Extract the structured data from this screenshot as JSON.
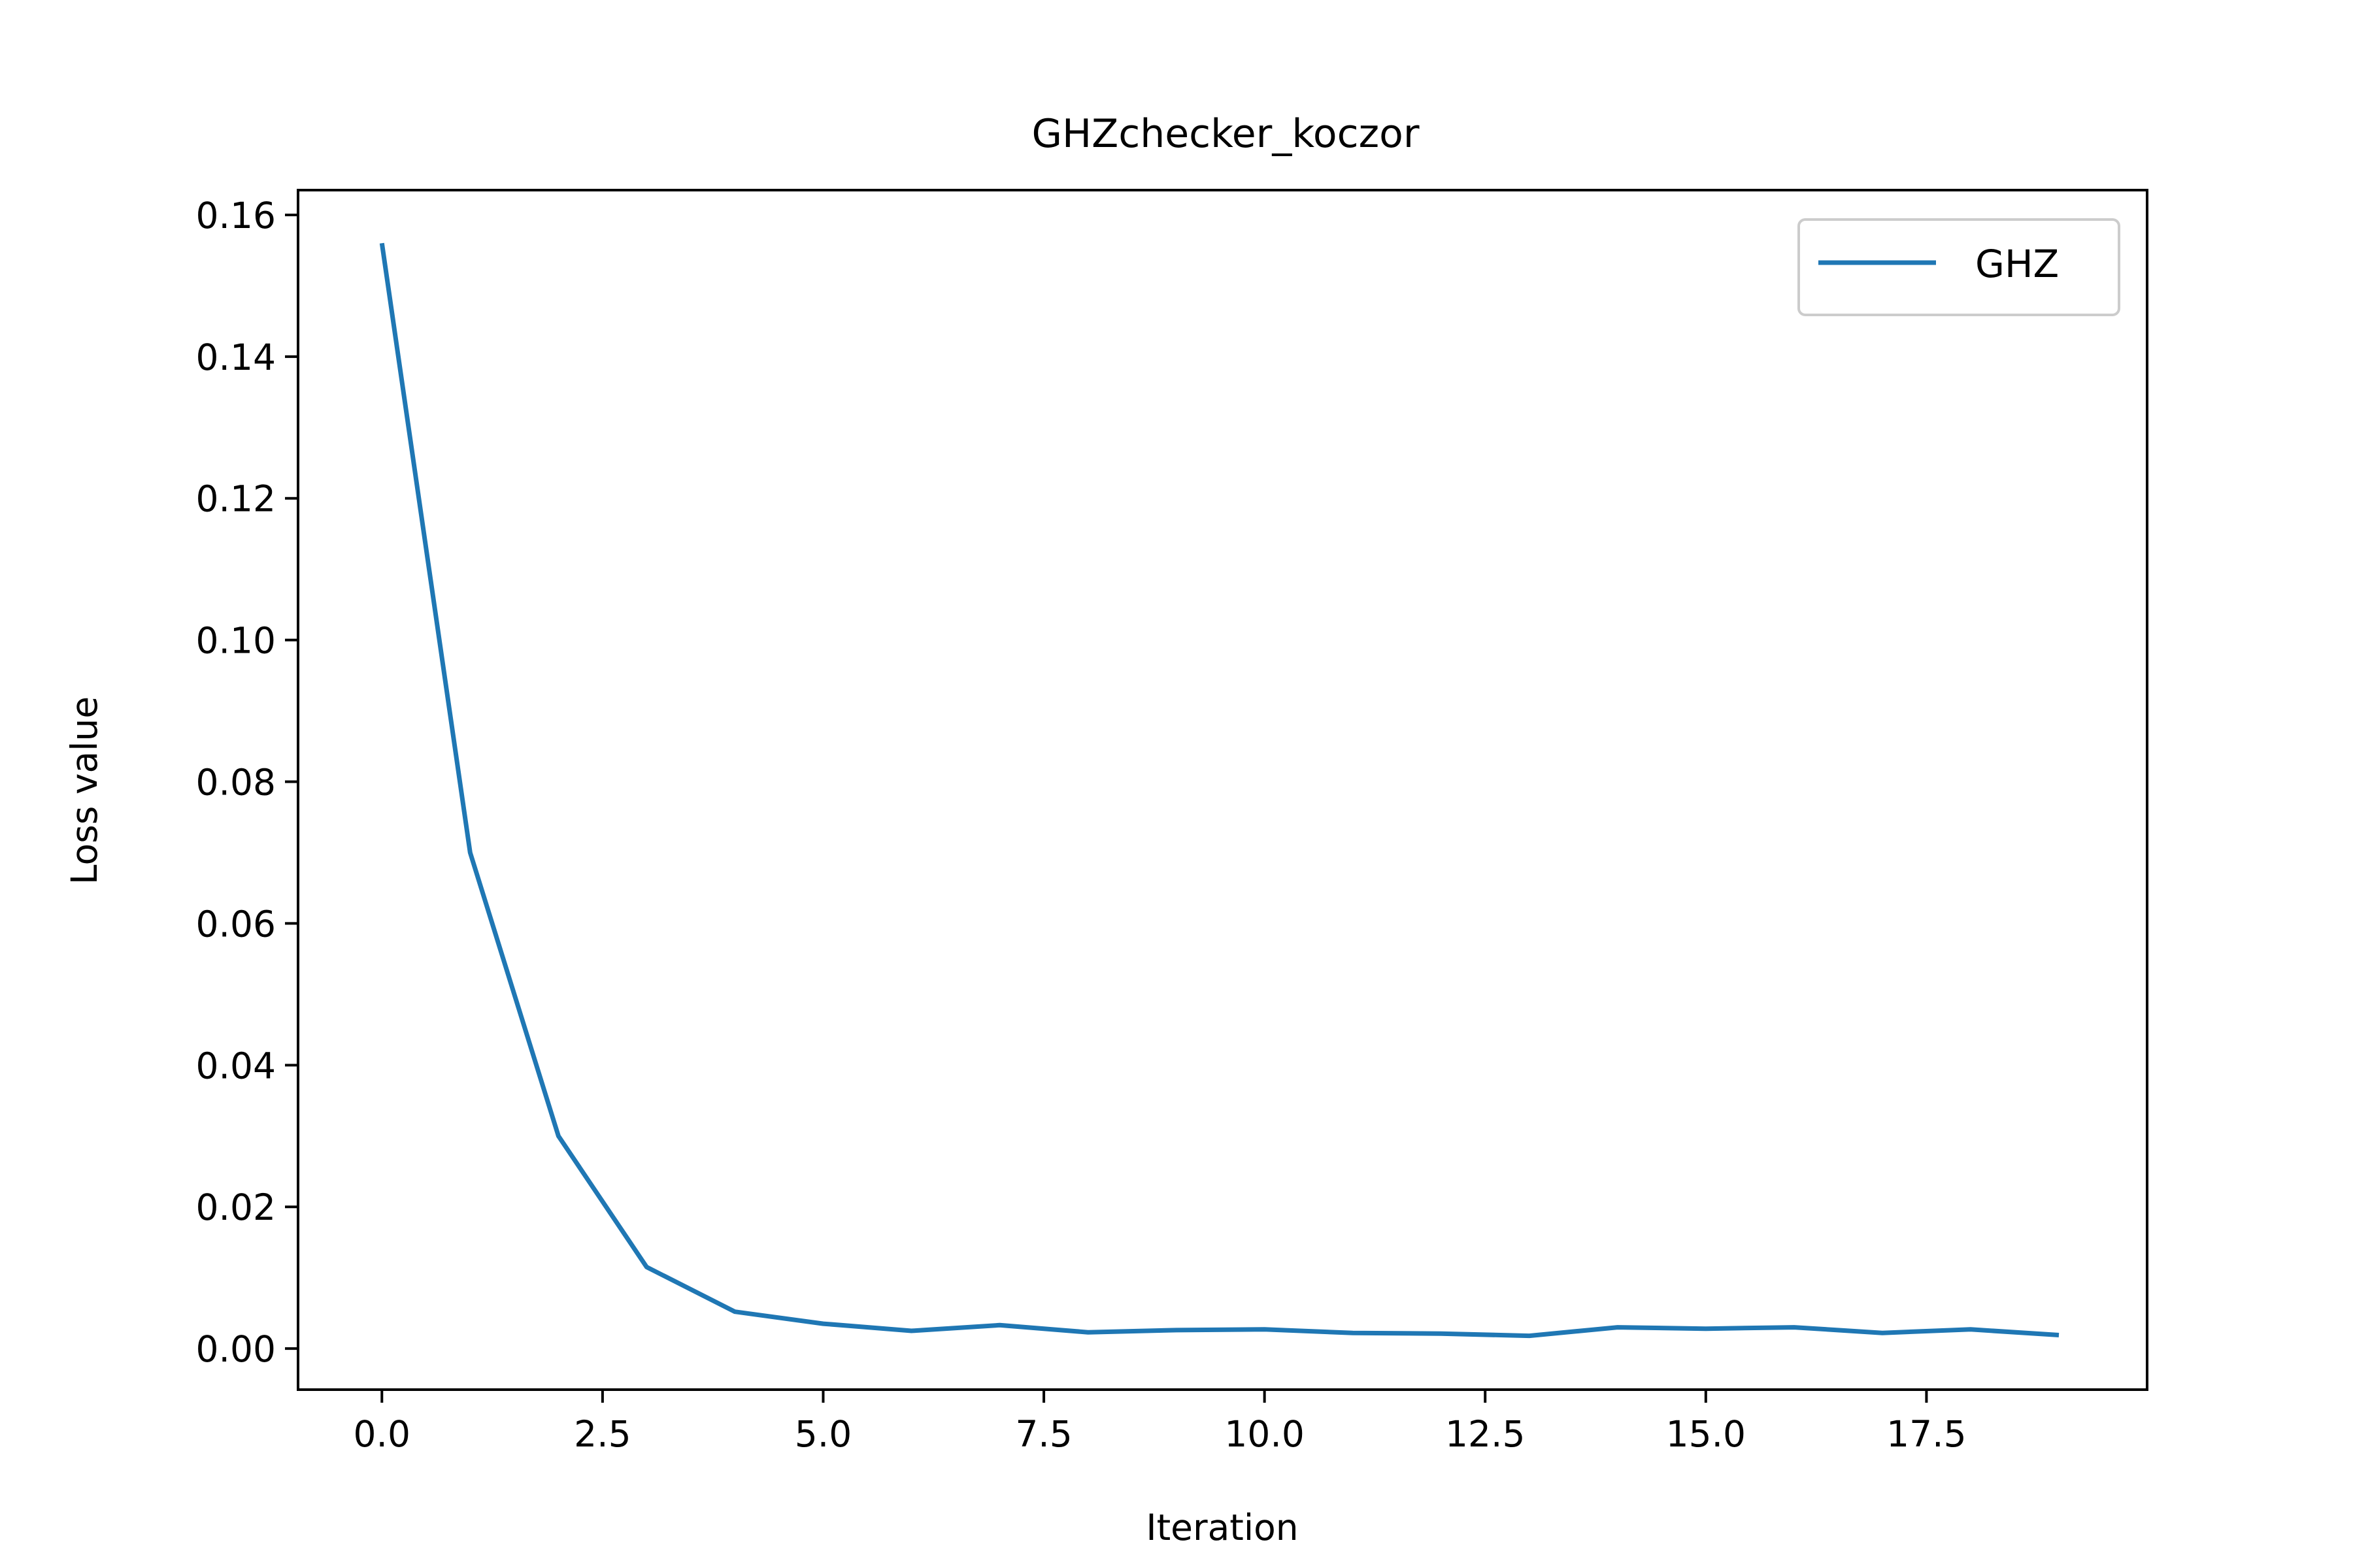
{
  "chart_data": {
    "type": "line",
    "title": "GHZchecker_koczor",
    "xlabel": "Iteration",
    "ylabel": "Loss value",
    "xlim": [
      -0.95,
      20.0
    ],
    "ylim": [
      -0.0058,
      0.1635
    ],
    "xticks": [
      0.0,
      2.5,
      5.0,
      7.5,
      10.0,
      12.5,
      15.0,
      17.5
    ],
    "xtick_labels": [
      "0.0",
      "2.5",
      "5.0",
      "7.5",
      "10.0",
      "12.5",
      "15.0",
      "17.5"
    ],
    "yticks": [
      0.0,
      0.02,
      0.04,
      0.06,
      0.08,
      0.1,
      0.12,
      0.14,
      0.16
    ],
    "ytick_labels": [
      "0.00",
      "0.02",
      "0.04",
      "0.06",
      "0.08",
      "0.10",
      "0.12",
      "0.14",
      "0.16"
    ],
    "grid": false,
    "legend_position": "top-right",
    "series": [
      {
        "name": "GHZ",
        "color": "#1f77b4",
        "x": [
          0,
          1,
          2,
          3,
          4,
          5,
          6,
          7,
          8,
          9,
          10,
          11,
          12,
          13,
          14,
          15,
          16,
          17,
          18,
          19
        ],
        "values": [
          0.156,
          0.07,
          0.03,
          0.0115,
          0.0052,
          0.0035,
          0.0025,
          0.0033,
          0.0023,
          0.0026,
          0.0027,
          0.0022,
          0.0021,
          0.0018,
          0.003,
          0.0028,
          0.003,
          0.0022,
          0.0027,
          0.0019
        ]
      }
    ]
  }
}
